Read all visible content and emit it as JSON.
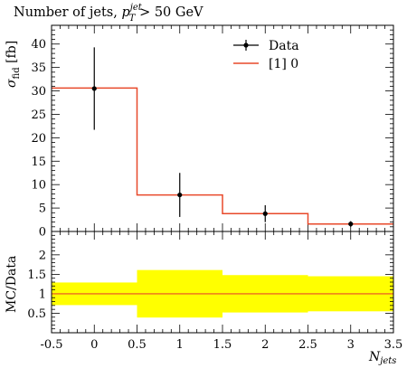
{
  "title": {
    "main": "Number of jets, ",
    "p": "p",
    "sup": "jet",
    "sub": "T",
    "cut": " > 50 GeV"
  },
  "legend": {
    "data_label": "Data",
    "mc_label": "[1] 0"
  },
  "axes": {
    "ylabel_sigma": "σ",
    "ylabel_sub": "fid",
    "ylabel_unit": " [fb]",
    "ratio_ylabel": "MC/Data",
    "xlabel_N": "N",
    "xlabel_sub": "jets"
  },
  "colors": {
    "mc_line": "#e8492a",
    "band": "#ffff00",
    "ratio_line": "#e8492a",
    "data": "#000000"
  },
  "chart_data": {
    "type": "line",
    "xlim": [
      -0.5,
      3.5
    ],
    "ylim": [
      0,
      44
    ],
    "ratio_ylim": [
      0,
      2.6
    ],
    "x_ticks": [
      "-0.5",
      "0",
      "0.5",
      "1",
      "1.5",
      "2",
      "2.5",
      "3",
      "3.5"
    ],
    "y_ticks": [
      "0",
      "5",
      "10",
      "15",
      "20",
      "25",
      "30",
      "35",
      "40"
    ],
    "ratio_ticks": [
      "0.5",
      "1",
      "1.5",
      "2"
    ],
    "data_points": [
      {
        "x": 0,
        "y": 30.5,
        "err": 8.8
      },
      {
        "x": 1,
        "y": 7.8,
        "err": 4.7
      },
      {
        "x": 2,
        "y": 3.8,
        "err": 1.8
      },
      {
        "x": 3,
        "y": 1.6,
        "err": 0.6
      }
    ],
    "mc_histogram": [
      {
        "lo": -0.5,
        "hi": 0.5,
        "y": 30.6
      },
      {
        "lo": 0.5,
        "hi": 1.5,
        "y": 7.8
      },
      {
        "lo": 1.5,
        "hi": 2.5,
        "y": 3.8
      },
      {
        "lo": 2.5,
        "hi": 3.5,
        "y": 1.6
      }
    ],
    "ratio_band": [
      {
        "lo": -0.5,
        "hi": 0.5,
        "min": 0.71,
        "max": 1.29
      },
      {
        "lo": 0.5,
        "hi": 1.5,
        "min": 0.39,
        "max": 1.61
      },
      {
        "lo": 1.5,
        "hi": 2.5,
        "min": 0.52,
        "max": 1.48
      },
      {
        "lo": 2.5,
        "hi": 3.5,
        "min": 0.55,
        "max": 1.45
      }
    ],
    "ratio_line": 1.0
  }
}
